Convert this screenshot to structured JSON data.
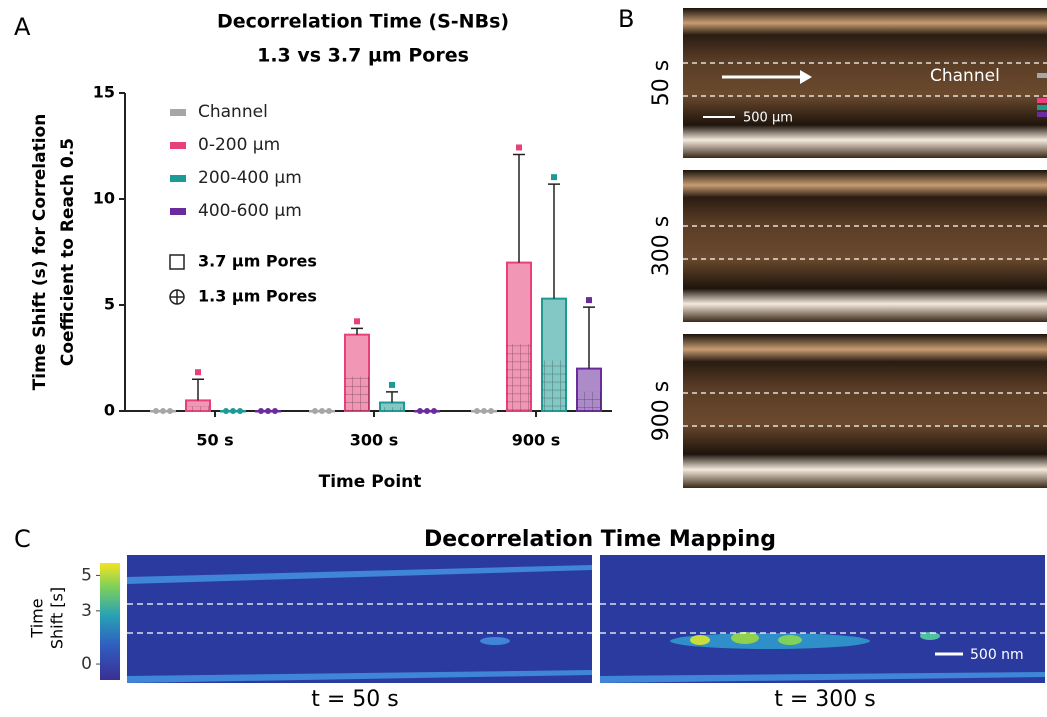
{
  "chart_data": {
    "type": "bar",
    "title": "Decorrelation Time (S-NBs)",
    "subtitle": "1.3 vs 3.7 µm Pores",
    "ylabel": [
      "Time Shift (s) for Correlation",
      "Coefficient to Reach 0.5"
    ],
    "xlabel": "Time Point",
    "categories": [
      "50 s",
      "300 s",
      "900 s"
    ],
    "series": [
      {
        "name": "Channel",
        "color": "#a6a6a6",
        "values": [
          0,
          0,
          0
        ],
        "errors": [
          0,
          0,
          0
        ]
      },
      {
        "name": "0-200 µm",
        "color": "#e8407a",
        "values": [
          0.5,
          3.6,
          7.0
        ],
        "errors": [
          1.0,
          0.3,
          5.1
        ]
      },
      {
        "name": "200-400 µm",
        "color": "#1d9a94",
        "values": [
          0,
          0.4,
          5.3
        ],
        "errors": [
          0,
          0.5,
          5.4
        ]
      },
      {
        "name": "400-600 µm",
        "color": "#6a2c9c",
        "values": [
          0,
          0,
          2.0
        ],
        "errors": [
          0,
          0,
          2.9
        ]
      }
    ],
    "marker_legend": [
      "3.7 µm Pores",
      "1.3 µm Pores"
    ],
    "ylim": [
      0,
      15
    ],
    "yticks": [
      0,
      5,
      10,
      15
    ]
  },
  "panel_labels": [
    "A",
    "B",
    "C"
  ],
  "panel_b": {
    "rows": [
      "50 s",
      "300 s",
      "900 s"
    ],
    "channel_label": "Channel",
    "scale_bar": "500 µm"
  },
  "panel_c": {
    "title": "Decorrelation Time Mapping",
    "colorbar_label": [
      "Time",
      "Shift [s]"
    ],
    "colorbar_ticks": [
      0,
      3,
      5
    ],
    "clim": [
      -0.9,
      5.7
    ],
    "frames": [
      "t = 50 s",
      "t = 300 s"
    ],
    "scale_bar": "500 nm"
  }
}
